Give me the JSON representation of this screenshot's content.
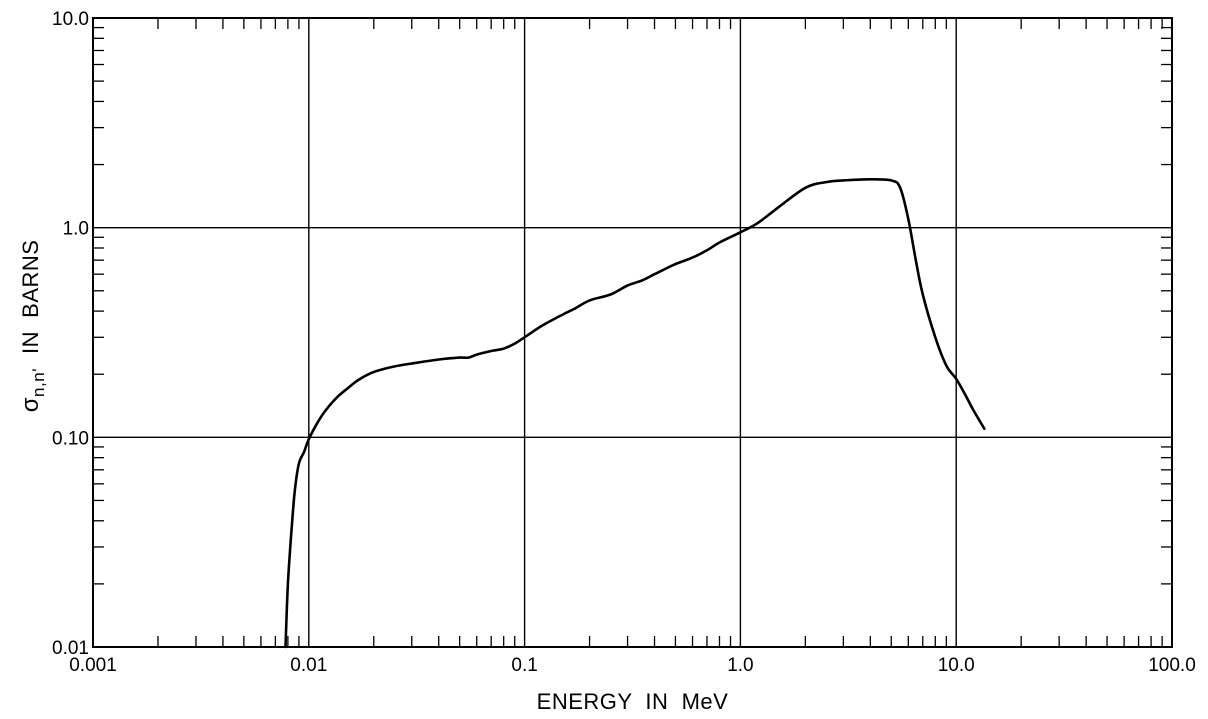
{
  "chart_data": {
    "type": "line",
    "title": "",
    "xlabel": "ENERGY  IN  MeV",
    "ylabel": {
      "symbol": "σ",
      "subscript": "n,n'",
      "text": "IN  BARNS"
    },
    "x_scale": "log",
    "y_scale": "log",
    "xlim": [
      0.001,
      100.0
    ],
    "ylim": [
      0.01,
      10.0
    ],
    "grid": "major decades",
    "x_tick_labels": [
      "0.001",
      "0.01",
      "0.1",
      "1.0",
      "10.0",
      "100.0"
    ],
    "x_tick_values": [
      0.001,
      0.01,
      0.1,
      1.0,
      10.0,
      100.0
    ],
    "y_tick_labels": [
      "0.01",
      "0.10",
      "1.0",
      "10.0"
    ],
    "y_tick_values": [
      0.01,
      0.1,
      1.0,
      10.0
    ],
    "series": [
      {
        "color": "#000000",
        "x": [
          0.0078,
          0.008,
          0.0083,
          0.0086,
          0.009,
          0.0095,
          0.01,
          0.011,
          0.012,
          0.0135,
          0.015,
          0.017,
          0.02,
          0.025,
          0.03,
          0.04,
          0.05,
          0.055,
          0.06,
          0.07,
          0.08,
          0.09,
          0.1,
          0.12,
          0.15,
          0.17,
          0.2,
          0.25,
          0.3,
          0.35,
          0.4,
          0.5,
          0.6,
          0.7,
          0.8,
          1.0,
          1.2,
          1.5,
          2.0,
          2.5,
          3.0,
          4.0,
          5.0,
          5.5,
          6.0,
          6.5,
          7.0,
          8.0,
          9.0,
          10.0,
          11.0,
          12.0,
          13.5
        ],
        "y": [
          0.01,
          0.02,
          0.035,
          0.055,
          0.075,
          0.085,
          0.098,
          0.118,
          0.135,
          0.155,
          0.17,
          0.188,
          0.205,
          0.218,
          0.225,
          0.235,
          0.24,
          0.24,
          0.248,
          0.258,
          0.265,
          0.28,
          0.3,
          0.34,
          0.385,
          0.41,
          0.45,
          0.48,
          0.53,
          0.56,
          0.6,
          0.67,
          0.72,
          0.78,
          0.85,
          0.95,
          1.05,
          1.25,
          1.55,
          1.65,
          1.68,
          1.7,
          1.68,
          1.55,
          1.1,
          0.7,
          0.48,
          0.3,
          0.22,
          0.19,
          0.16,
          0.135,
          0.11
        ]
      }
    ]
  }
}
